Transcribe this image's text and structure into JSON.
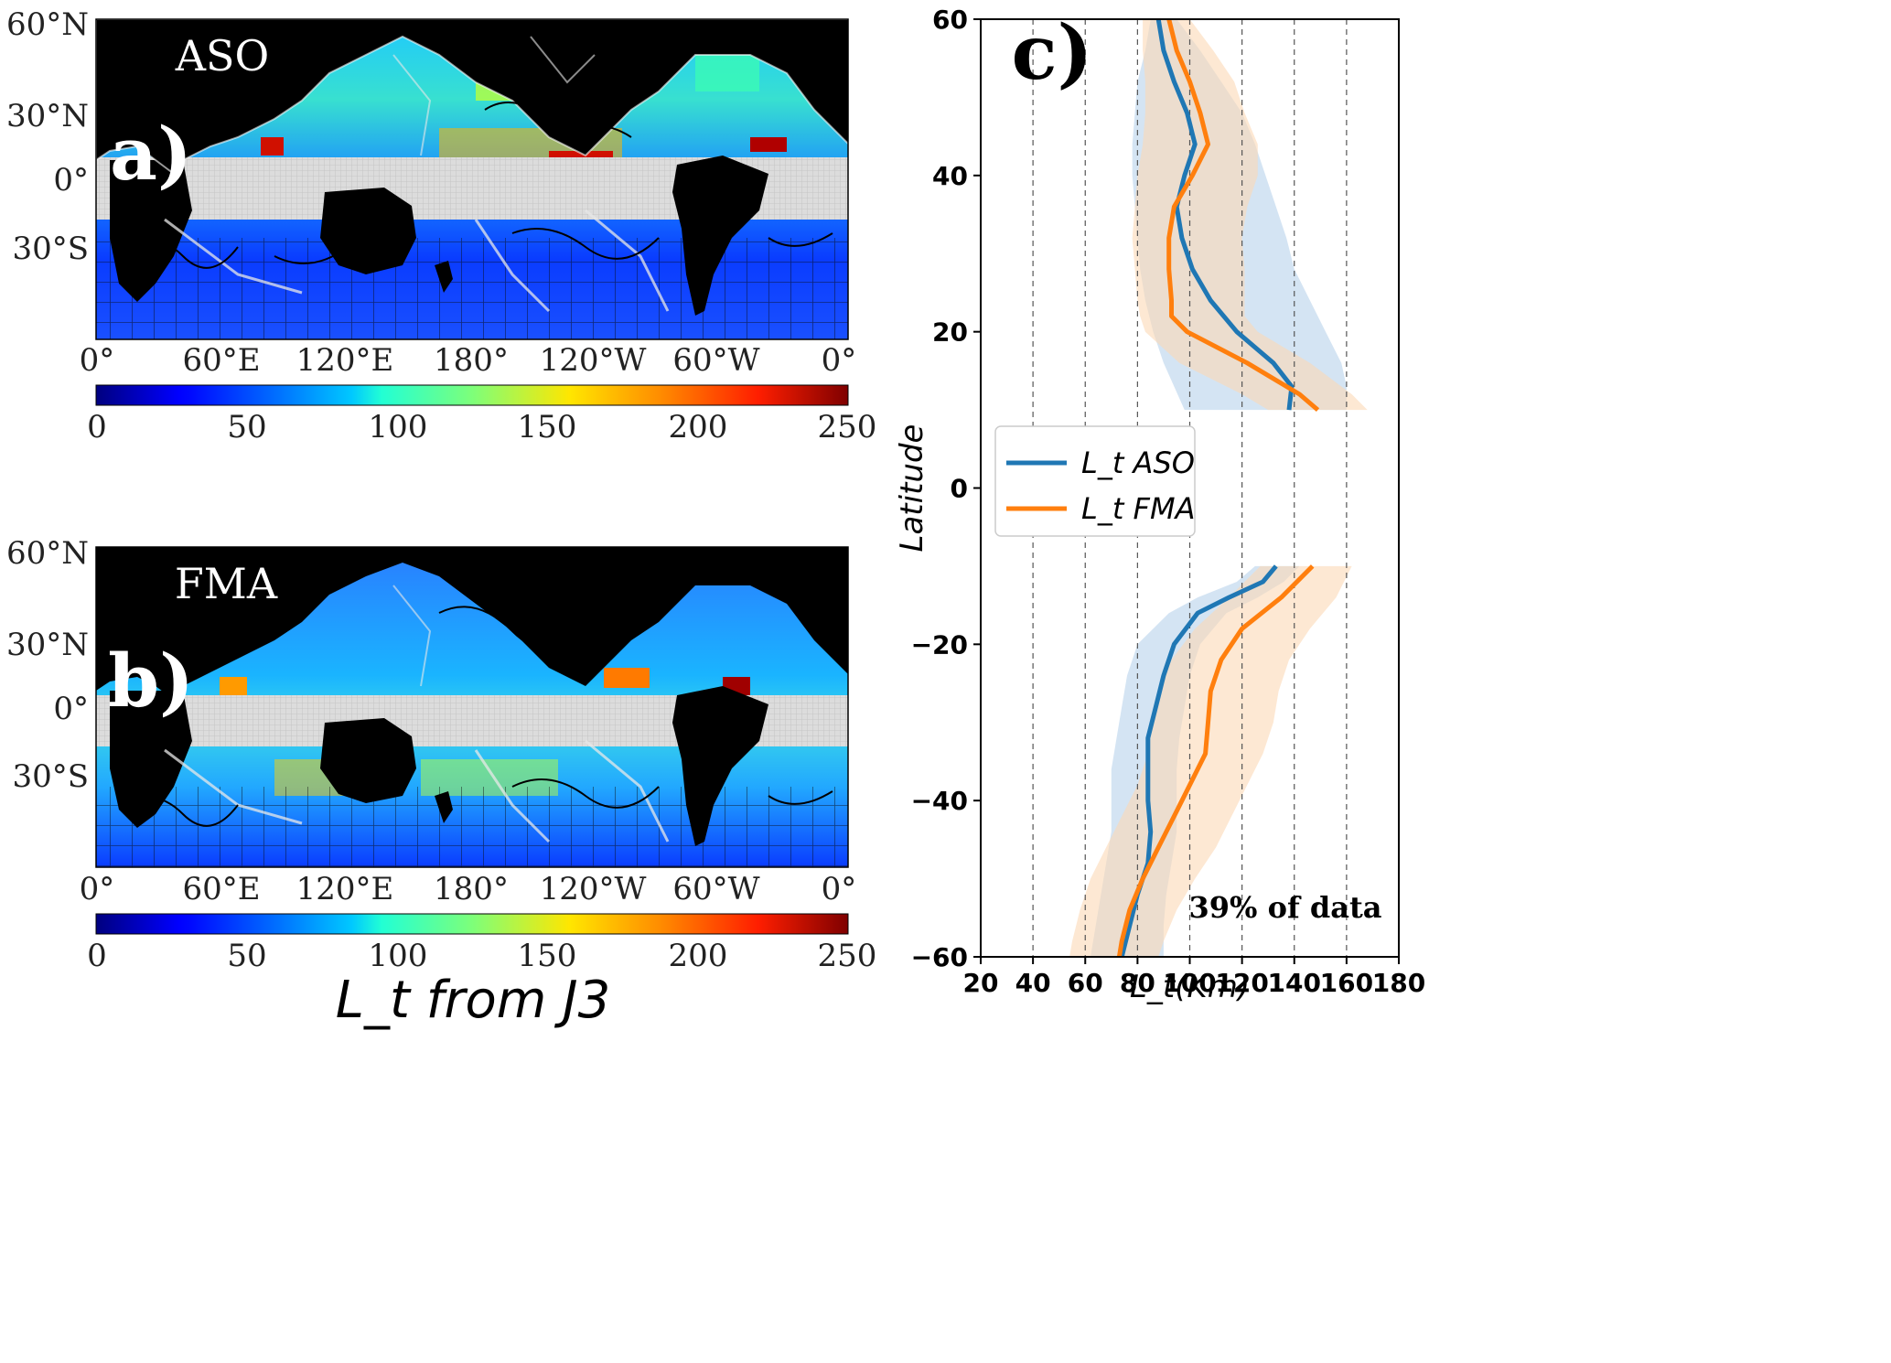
{
  "figure": {
    "map_a": {
      "season_label": "ASO",
      "panel_label": "a)",
      "lat_ticks": [
        "60°N",
        "30°N",
        "0°",
        "30°S"
      ],
      "lon_ticks": [
        "0°",
        "60°E",
        "120°E",
        "180°",
        "120°W",
        "60°W",
        "0°"
      ],
      "colorbar_ticks": [
        "0",
        "50",
        "100",
        "150",
        "200",
        "250"
      ]
    },
    "map_b": {
      "season_label": "FMA",
      "panel_label": "b)",
      "lat_ticks": [
        "60°N",
        "30°N",
        "0°",
        "30°S"
      ],
      "lon_ticks": [
        "0°",
        "60°E",
        "120°E",
        "180°",
        "120°W",
        "60°W",
        "0°"
      ],
      "colorbar_ticks": [
        "0",
        "50",
        "100",
        "150",
        "200",
        "250"
      ],
      "colorbar_title": "L_t from J3"
    },
    "colors": {
      "land": "#000000",
      "ocean_missing": "#d9d9d9",
      "aso": "#1f77b4",
      "fma": "#ff7f0e",
      "aso_band": "#c6dbef",
      "fma_band": "#fbd9b5"
    }
  },
  "chart_data": [
    {
      "type": "map",
      "title": "ASO",
      "panel": "a)",
      "colorbar": {
        "min": 0,
        "max": 250,
        "colormap": "jet"
      }
    },
    {
      "type": "map",
      "title": "FMA",
      "panel": "b)",
      "colorbar": {
        "min": 0,
        "max": 250,
        "colormap": "jet",
        "label": "L_t from J3"
      }
    },
    {
      "type": "line",
      "panel": "c)",
      "title": "",
      "xlabel": "L_t(Km)",
      "ylabel": "Latitude",
      "xlim": [
        20,
        180
      ],
      "ylim": [
        -60,
        60
      ],
      "xticks": [
        20,
        40,
        60,
        80,
        100,
        120,
        140,
        160,
        180
      ],
      "yticks": [
        -60,
        -40,
        -20,
        0,
        20,
        40,
        60
      ],
      "vgrid": [
        40,
        60,
        80,
        100,
        120,
        140,
        160
      ],
      "annotation": "39% of data",
      "legend": {
        "position": "center-left",
        "entries": [
          "L_t ASO",
          "L_t FMA"
        ]
      },
      "series": [
        {
          "name": "L_t ASO",
          "color": "#1f77b4",
          "north": {
            "lat": [
              60,
              56,
              52,
              48,
              44,
              40,
              36,
              32,
              28,
              24,
              20,
              16,
              13,
              10
            ],
            "mean": [
              88,
              90,
              94,
              99,
              102,
              98,
              95,
              97,
              101,
              108,
              118,
              132,
              139,
              138
            ],
            "lower": [
              85,
              83,
              80,
              79,
              78,
              78,
              79,
              80,
              81,
              83,
              86,
              90,
              94,
              98
            ],
            "upper": [
              95,
              104,
              112,
              120,
              125,
              129,
              133,
              137,
              140,
              146,
              152,
              158,
              160,
              160
            ]
          },
          "south": {
            "lat": [
              -10,
              -12,
              -14,
              -16,
              -20,
              -24,
              -28,
              -32,
              -36,
              -40,
              -44,
              -48,
              -52,
              -56,
              -60
            ],
            "mean": [
              133,
              128,
              115,
              103,
              94,
              90,
              87,
              84,
              84,
              84,
              85,
              84,
              80,
              77,
              74
            ],
            "lower": [
              125,
              118,
              103,
              92,
              80,
              76,
              74,
              72,
              70,
              70,
              70,
              68,
              66,
              64,
              62
            ],
            "upper": [
              142,
              136,
              126,
              114,
              104,
              100,
              98,
              96,
              95,
              95,
              95,
              93,
              91,
              90,
              90
            ]
          }
        },
        {
          "name": "L_t FMA",
          "color": "#ff7f0e",
          "north": {
            "lat": [
              60,
              56,
              52,
              48,
              44,
              40,
              36,
              32,
              28,
              24,
              22,
              20,
              16,
              12,
              10
            ],
            "mean": [
              92,
              95,
              100,
              104,
              107,
              101,
              94,
              92,
              92,
              93,
              93,
              99,
              122,
              142,
              149
            ],
            "lower": [
              82,
              82,
              83,
              83,
              82,
              80,
              79,
              78,
              79,
              80,
              81,
              83,
              96,
              120,
              130
            ],
            "upper": [
              100,
              109,
              117,
              121,
              126,
              126,
              122,
              120,
              121,
              121,
              121,
              126,
              146,
              162,
              168
            ]
          },
          "south": {
            "lat": [
              -10,
              -14,
              -18,
              -22,
              -26,
              -30,
              -34,
              -38,
              -42,
              -46,
              -50,
              -54,
              -58,
              -60
            ],
            "mean": [
              147,
              135,
              120,
              112,
              108,
              107,
              106,
              100,
              94,
              88,
              82,
              77,
              74,
              73
            ],
            "lower": [
              127,
              115,
              102,
              93,
              88,
              86,
              84,
              80,
              74,
              68,
              62,
              58,
              55,
              54
            ],
            "upper": [
              162,
              156,
              146,
              138,
              134,
              132,
              128,
              122,
              116,
              110,
              102,
              95,
              90,
              88
            ]
          }
        }
      ]
    }
  ]
}
